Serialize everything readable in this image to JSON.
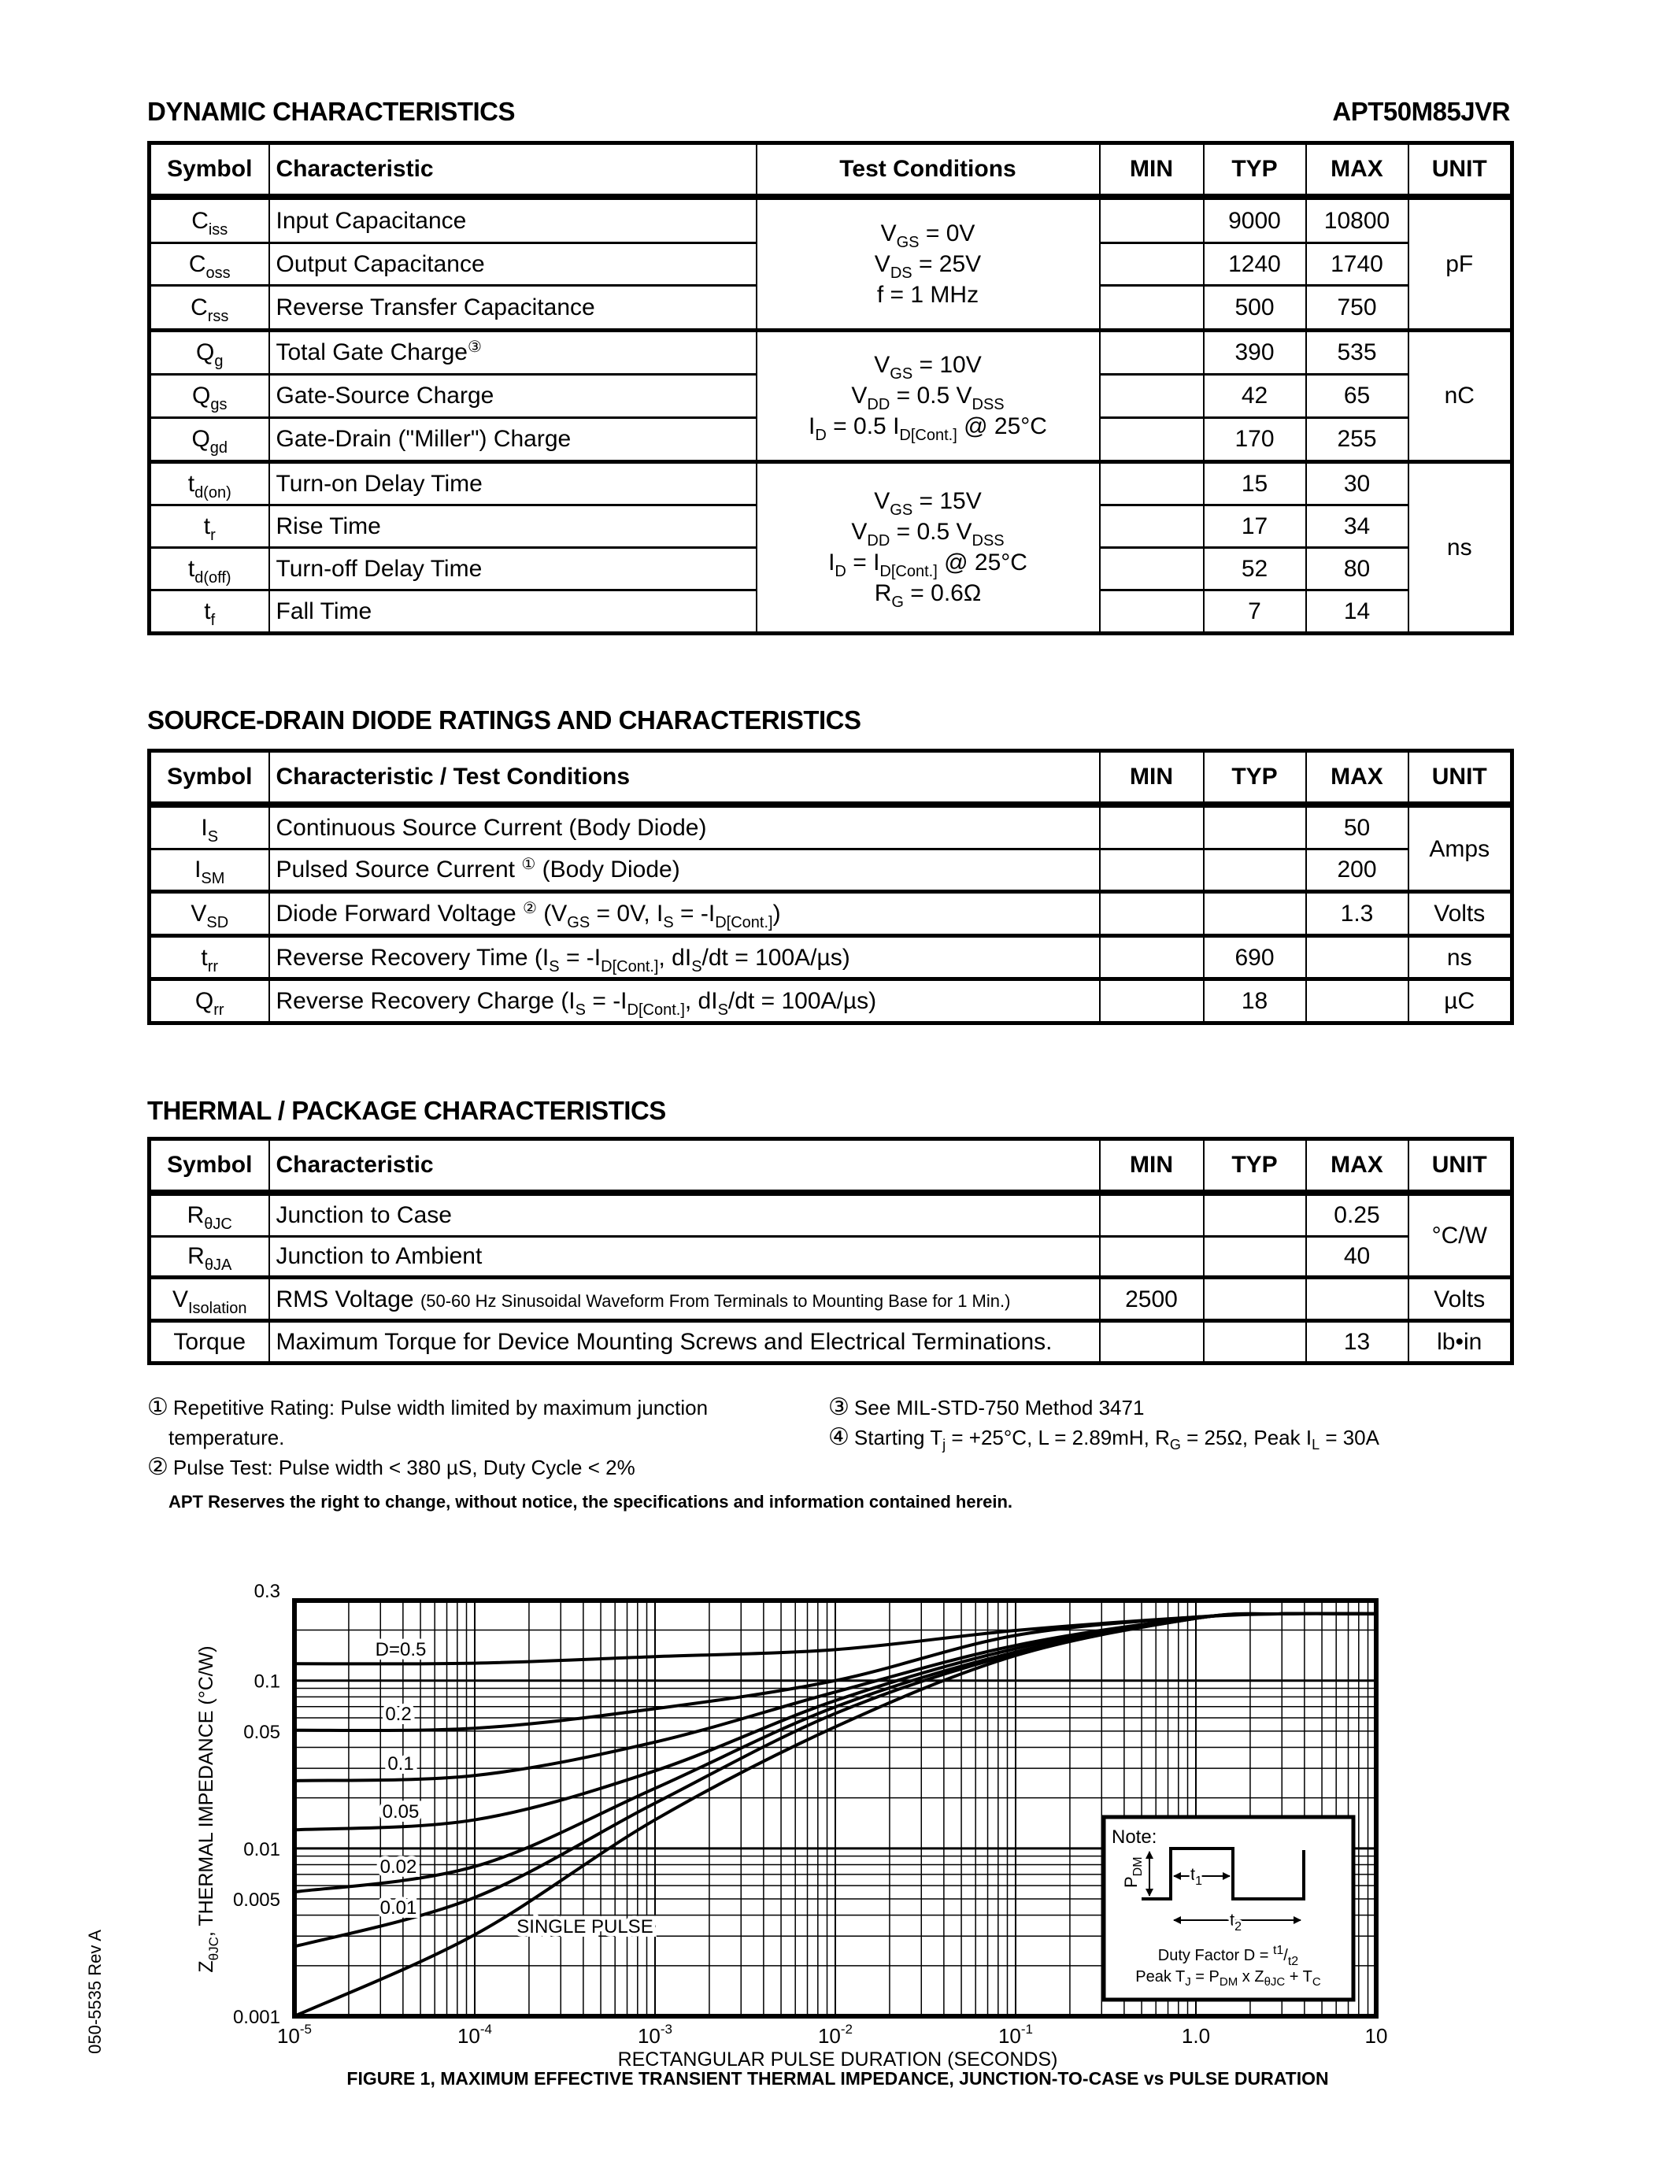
{
  "header": {
    "section_title": "DYNAMIC CHARACTERISTICS",
    "part_number": "APT50M85JVR"
  },
  "dynamic": {
    "columns": [
      "Symbol",
      "Characteristic",
      "Test Conditions",
      "MIN",
      "TYP",
      "MAX",
      "UNIT"
    ],
    "groups": [
      {
        "conditions": [
          [
            "V",
            {
              "sub": "GS"
            },
            " = 0V"
          ],
          [
            "V",
            {
              "sub": "DS"
            },
            " = 25V"
          ],
          [
            "f = 1 MHz"
          ]
        ],
        "unit": "pF",
        "rows": [
          {
            "symbol": [
              "C",
              {
                "sub": "iss"
              }
            ],
            "characteristic": [
              "Input Capacitance"
            ],
            "min": "",
            "typ": "9000",
            "max": "10800"
          },
          {
            "symbol": [
              "C",
              {
                "sub": "oss"
              }
            ],
            "characteristic": [
              "Output Capacitance"
            ],
            "min": "",
            "typ": "1240",
            "max": "1740"
          },
          {
            "symbol": [
              "C",
              {
                "sub": "rss"
              }
            ],
            "characteristic": [
              "Reverse Transfer Capacitance"
            ],
            "min": "",
            "typ": "500",
            "max": "750"
          }
        ]
      },
      {
        "conditions": [
          [
            "V",
            {
              "sub": "GS"
            },
            " = 10V"
          ],
          [
            "V",
            {
              "sub": "DD"
            },
            " = 0.5 V",
            {
              "sub": "DSS"
            }
          ],
          [
            "I",
            {
              "sub": "D"
            },
            " = 0.5 I",
            {
              "sub": "D[Cont.]"
            },
            " @ 25°C"
          ]
        ],
        "unit": "nC",
        "rows": [
          {
            "symbol": [
              "Q",
              {
                "sub": "g"
              }
            ],
            "characteristic": [
              "Total Gate Charge",
              {
                "sup": "③"
              }
            ],
            "min": "",
            "typ": "390",
            "max": "535"
          },
          {
            "symbol": [
              "Q",
              {
                "sub": "gs"
              }
            ],
            "characteristic": [
              "Gate-Source Charge"
            ],
            "min": "",
            "typ": "42",
            "max": "65"
          },
          {
            "symbol": [
              "Q",
              {
                "sub": "gd"
              }
            ],
            "characteristic": [
              "Gate-Drain (\"Miller\") Charge"
            ],
            "min": "",
            "typ": "170",
            "max": "255"
          }
        ]
      },
      {
        "conditions": [
          [
            "V",
            {
              "sub": "GS"
            },
            " = 15V"
          ],
          [
            "V",
            {
              "sub": "DD"
            },
            " = 0.5 V",
            {
              "sub": "DSS"
            }
          ],
          [
            "I",
            {
              "sub": "D"
            },
            " = I",
            {
              "sub": "D[Cont.]"
            },
            " @ 25°C"
          ],
          [
            "R",
            {
              "sub": "G"
            },
            " = 0.6Ω"
          ]
        ],
        "unit": "ns",
        "rows": [
          {
            "symbol": [
              "t",
              {
                "sub": "d(on)"
              }
            ],
            "characteristic": [
              "Turn-on Delay Time"
            ],
            "min": "",
            "typ": "15",
            "max": "30"
          },
          {
            "symbol": [
              "t",
              {
                "sub": "r"
              }
            ],
            "characteristic": [
              "Rise Time"
            ],
            "min": "",
            "typ": "17",
            "max": "34"
          },
          {
            "symbol": [
              "t",
              {
                "sub": "d(off)"
              }
            ],
            "characteristic": [
              "Turn-off Delay Time"
            ],
            "min": "",
            "typ": "52",
            "max": "80"
          },
          {
            "symbol": [
              "t",
              {
                "sub": "f"
              }
            ],
            "characteristic": [
              "Fall Time"
            ],
            "min": "",
            "typ": "7",
            "max": "14"
          }
        ]
      }
    ]
  },
  "source_drain": {
    "title": "SOURCE-DRAIN DIODE RATINGS AND CHARACTERISTICS",
    "columns": [
      "Symbol",
      "Characteristic / Test Conditions",
      "MIN",
      "TYP",
      "MAX",
      "UNIT"
    ],
    "groups": [
      {
        "unit": "Amps",
        "rows": [
          {
            "symbol": [
              "I",
              {
                "sub": "S"
              }
            ],
            "characteristic": [
              "Continuous Source Current  (Body Diode)"
            ],
            "min": "",
            "typ": "",
            "max": "50"
          },
          {
            "symbol": [
              "I",
              {
                "sub": "SM"
              }
            ],
            "characteristic": [
              "Pulsed Source Current ",
              {
                "sup": "①"
              },
              "  (Body Diode)"
            ],
            "min": "",
            "typ": "",
            "max": "200"
          }
        ]
      },
      {
        "unit": "Volts",
        "rows": [
          {
            "symbol": [
              "V",
              {
                "sub": "SD"
              }
            ],
            "characteristic": [
              "Diode Forward Voltage ",
              {
                "sup": "②"
              },
              " (V",
              {
                "sub": "GS"
              },
              " = 0V, I",
              {
                "sub": "S"
              },
              " = -I",
              {
                "sub": "D[Cont.]"
              },
              ")"
            ],
            "min": "",
            "typ": "",
            "max": "1.3"
          }
        ]
      },
      {
        "unit": "ns",
        "rows": [
          {
            "symbol": [
              "t",
              {
                "sub": "rr"
              }
            ],
            "characteristic": [
              "Reverse Recovery Time  (I",
              {
                "sub": "S"
              },
              " = -I",
              {
                "sub": "D[Cont.]"
              },
              ", dI",
              {
                "sub": "S"
              },
              "/dt = 100A/µs)"
            ],
            "min": "",
            "typ": "690",
            "max": ""
          }
        ]
      },
      {
        "unit": "µC",
        "rows": [
          {
            "symbol": [
              "Q",
              {
                "sub": "rr"
              }
            ],
            "characteristic": [
              "Reverse Recovery Charge  (I",
              {
                "sub": "S"
              },
              " = -I",
              {
                "sub": "D[Cont.]"
              },
              ", dI",
              {
                "sub": "S"
              },
              "/dt = 100A/µs)"
            ],
            "min": "",
            "typ": "18",
            "max": ""
          }
        ]
      }
    ]
  },
  "thermal": {
    "title": "THERMAL / PACKAGE CHARACTERISTICS",
    "columns": [
      "Symbol",
      "Characteristic",
      "MIN",
      "TYP",
      "MAX",
      "UNIT"
    ],
    "groups": [
      {
        "unit": "°C/W",
        "rows": [
          {
            "symbol": [
              "R",
              {
                "sub": "θJC"
              }
            ],
            "characteristic": [
              "Junction to Case"
            ],
            "min": "",
            "typ": "",
            "max": "0.25"
          },
          {
            "symbol": [
              "R",
              {
                "sub": "θJA"
              }
            ],
            "characteristic": [
              "Junction to Ambient"
            ],
            "min": "",
            "typ": "",
            "max": "40"
          }
        ]
      },
      {
        "unit": "Volts",
        "rows": [
          {
            "symbol": [
              "V",
              {
                "sub": "Isolation"
              }
            ],
            "characteristic": [
              "RMS Voltage ",
              {
                "small": "(50-60 Hz Sinusoidal Waveform From Terminals to Mounting Base for 1 Min.)"
              }
            ],
            "min": "2500",
            "typ": "",
            "max": ""
          }
        ]
      },
      {
        "unit": "lb•in",
        "rows": [
          {
            "symbol": [
              "Torque"
            ],
            "characteristic": [
              "Maximum Torque for Device Mounting Screws and Electrical Terminations."
            ],
            "min": "",
            "typ": "",
            "max": "13"
          }
        ]
      }
    ]
  },
  "footnotes": [
    {
      "mark": "①",
      "text": [
        "Repetitive Rating: Pulse width limited by maximum junction"
      ],
      "cont": "temperature."
    },
    {
      "mark": "②",
      "text": [
        "Pulse Test: Pulse width < 380 µS, Duty Cycle < 2%"
      ]
    },
    {
      "mark": "③",
      "text": [
        "See MIL-STD-750 Method 3471"
      ]
    },
    {
      "mark": "④",
      "text": [
        "Starting T",
        {
          "sub": "j"
        },
        " = +25°C, L = 2.89mH, R",
        {
          "sub": "G"
        },
        " = 25Ω, Peak I",
        {
          "sub": "L"
        },
        " = 30A"
      ]
    }
  ],
  "disclaimer": "APT Reserves the right to change, without notice, the specifications and information contained herein.",
  "side_code": "050-5535 Rev A",
  "chart_data": {
    "type": "line",
    "title": "FIGURE 1, MAXIMUM EFFECTIVE TRANSIENT THERMAL IMPEDANCE, JUNCTION-TO-CASE vs PULSE DURATION",
    "xlabel": "RECTANGULAR PULSE DURATION (SECONDS)",
    "ylabel": {
      "pre": "Z",
      "sub": "θJC",
      "post": ", THERMAL IMPEDANCE (°C/W)"
    },
    "xscale": "log",
    "yscale": "log",
    "xlim": [
      1e-05,
      10
    ],
    "ylim": [
      0.001,
      0.3
    ],
    "grid": true,
    "xticks": [
      {
        "base": "10",
        "exp": "-5",
        "value": 1e-05
      },
      {
        "base": "10",
        "exp": "-4",
        "value": 0.0001
      },
      {
        "base": "10",
        "exp": "-3",
        "value": 0.001
      },
      {
        "base": "10",
        "exp": "-2",
        "value": 0.01
      },
      {
        "base": "10",
        "exp": "-1",
        "value": 0.1
      },
      {
        "base": "1.0",
        "exp": "",
        "value": 1
      },
      {
        "base": "10",
        "exp": "",
        "value": 10
      }
    ],
    "yticks": [
      {
        "label": "0.3",
        "value": 0.3
      },
      {
        "label": "0.1",
        "value": 0.1
      },
      {
        "label": "0.05",
        "value": 0.05
      },
      {
        "label": "0.01",
        "value": 0.01
      },
      {
        "label": "0.005",
        "value": 0.005
      },
      {
        "label": "0.001",
        "value": 0.001
      }
    ],
    "x": [
      1e-05,
      0.0001,
      0.001,
      0.01,
      0.1,
      1,
      3,
      10
    ],
    "series": [
      {
        "name": "D=0.5",
        "values": [
          0.126,
          0.127,
          0.139,
          0.153,
          0.199,
          0.239,
          0.25,
          0.25
        ]
      },
      {
        "name": "0.2",
        "values": [
          0.0506,
          0.052,
          0.068,
          0.1,
          0.186,
          0.239,
          0.25,
          0.25
        ]
      },
      {
        "name": "0.1",
        "values": [
          0.0253,
          0.0272,
          0.043,
          0.0855,
          0.162,
          0.237,
          0.25,
          0.25
        ]
      },
      {
        "name": "0.05",
        "values": [
          0.0129,
          0.0148,
          0.029,
          0.076,
          0.155,
          0.236,
          0.25,
          0.25
        ]
      },
      {
        "name": "0.02",
        "values": [
          0.0055,
          0.0078,
          0.0228,
          0.0697,
          0.148,
          0.235,
          0.25,
          0.25
        ]
      },
      {
        "name": "0.01",
        "values": [
          0.0026,
          0.0051,
          0.0186,
          0.0637,
          0.145,
          0.235,
          0.25,
          0.25
        ]
      },
      {
        "name": "SINGLE PULSE",
        "values": [
          0.001,
          0.00306,
          0.0148,
          0.053,
          0.141,
          0.235,
          0.25,
          0.25
        ]
      }
    ],
    "note": {
      "label": "Note:",
      "pdm": {
        "pre": "P",
        "sub": "DM"
      },
      "t1": {
        "pre": "t",
        "sub": "1"
      },
      "t2": {
        "pre": "t",
        "sub": "2"
      },
      "duty": {
        "pre": "Duty Factor  D = ",
        "num": "t1",
        "den": "t2"
      },
      "peak": {
        "a": "Peak T",
        "a_sub": "J",
        "b": " = P",
        "b_sub": "DM",
        "c": " x Z",
        "c_sub": "θJC",
        "d": " + T",
        "d_sub": "C"
      }
    }
  }
}
